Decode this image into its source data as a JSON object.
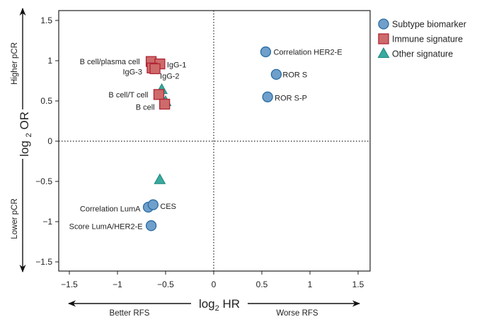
{
  "chart_data": {
    "type": "scatter",
    "title": "",
    "xlabel": "log2 HR",
    "ylabel": "log2 OR",
    "xlim": [
      -1.6,
      1.6
    ],
    "ylim": [
      -1.6,
      1.6
    ],
    "xticks": [
      "-1.5",
      "-1",
      "-0.5",
      "0",
      "0.5",
      "1",
      "1.5"
    ],
    "yticks": [
      "1.5",
      "1",
      "0.5",
      "0",
      "-0.5",
      "-1",
      "-1.5"
    ],
    "reference_lines": {
      "x": 0,
      "y": 0,
      "style": "dotted"
    },
    "grid": false,
    "legend_placement": "right-top",
    "annotations": {
      "y_up": "Higher pCR",
      "y_down": "Lower pCR",
      "x_left": "Better RFS",
      "x_right": "Worse RFS"
    },
    "series": [
      {
        "name": "Subtype biomarker",
        "marker": "circle",
        "color": "#6f9fcb",
        "edge": "#2a6ca3",
        "points": [
          {
            "label": "Correlation HER2-E",
            "x": 0.54,
            "y": 1.11
          },
          {
            "label": "ROR S",
            "x": 0.65,
            "y": 0.83
          },
          {
            "label": "ROR S-P",
            "x": 0.56,
            "y": 0.55
          },
          {
            "label": "Correlation LumA",
            "x": -0.68,
            "y": -0.82
          },
          {
            "label": "CES",
            "x": -0.63,
            "y": -0.79
          },
          {
            "label": "Score LumA/HER2-E",
            "x": -0.65,
            "y": -1.05
          }
        ]
      },
      {
        "name": "Immune signature",
        "marker": "square",
        "color": "#cd6b6b",
        "edge": "#b02535",
        "points": [
          {
            "label": "B cell/plasma cell",
            "x": -0.65,
            "y": 0.99
          },
          {
            "label": "IgG-1",
            "x": -0.56,
            "y": 0.96
          },
          {
            "label": "IgG-3",
            "x": -0.64,
            "y": 0.91
          },
          {
            "label": "IgG-2",
            "x": -0.61,
            "y": 0.9
          },
          {
            "label": "B cell/T cell",
            "x": -0.57,
            "y": 0.58
          },
          {
            "label": "B cell",
            "x": -0.51,
            "y": 0.46
          }
        ]
      },
      {
        "name": "Other signature",
        "marker": "triangle",
        "color": "#3aa99f",
        "edge": "#1f8a80",
        "points": [
          {
            "label": "",
            "x": -0.54,
            "y": 0.64
          },
          {
            "label": "",
            "x": -0.5,
            "y": 0.49
          },
          {
            "label": "",
            "x": -0.56,
            "y": -0.48
          }
        ]
      }
    ]
  }
}
